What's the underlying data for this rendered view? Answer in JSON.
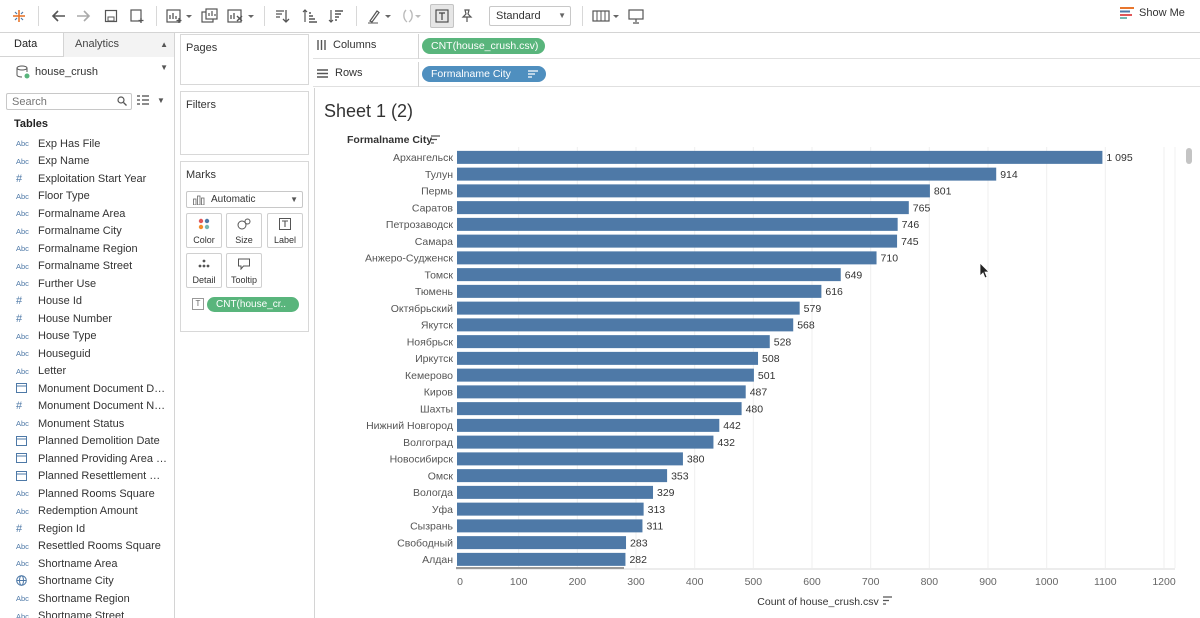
{
  "toolbar": {
    "icons": [
      "tableau-logo-icon",
      "back-icon",
      "forward-icon",
      "save-icon",
      "new-datasource-icon",
      "new-sheet-icon",
      "duplicate-icon",
      "clear-icon",
      "swap-icon",
      "sort-asc-icon",
      "sort-desc-icon",
      "highlight-icon",
      "group-icon",
      "labels-icon",
      "pin-icon",
      "fit-select",
      "show-cards-icon",
      "presentation-icon"
    ],
    "fit_value": "Standard",
    "show_me": "Show Me"
  },
  "data_pane": {
    "tab_data": "Data",
    "tab_analytics": "Analytics",
    "datasource": "house_crush",
    "search_placeholder": "Search",
    "tables_heading": "Tables",
    "fields": [
      {
        "type": "Abc",
        "name": "Exp Has File"
      },
      {
        "type": "Abc",
        "name": "Exp Name"
      },
      {
        "type": "#",
        "name": "Exploitation Start Year"
      },
      {
        "type": "Abc",
        "name": "Floor Type"
      },
      {
        "type": "Abc",
        "name": "Formalname Area"
      },
      {
        "type": "Abc",
        "name": "Formalname City"
      },
      {
        "type": "Abc",
        "name": "Formalname Region"
      },
      {
        "type": "Abc",
        "name": "Formalname Street"
      },
      {
        "type": "Abc",
        "name": "Further Use"
      },
      {
        "type": "#",
        "name": "House Id"
      },
      {
        "type": "#",
        "name": "House Number"
      },
      {
        "type": "Abc",
        "name": "House Type"
      },
      {
        "type": "Abc",
        "name": "Houseguid"
      },
      {
        "type": "Abc",
        "name": "Letter"
      },
      {
        "type": "date",
        "name": "Monument Document Date"
      },
      {
        "type": "#",
        "name": "Monument Document Nu..."
      },
      {
        "type": "Abc",
        "name": "Monument Status"
      },
      {
        "type": "date",
        "name": "Planned Demolition Date"
      },
      {
        "type": "date",
        "name": "Planned Providing Area Sq..."
      },
      {
        "type": "date",
        "name": "Planned Resettlement Date"
      },
      {
        "type": "Abc",
        "name": "Planned Rooms Square"
      },
      {
        "type": "Abc",
        "name": "Redemption Amount"
      },
      {
        "type": "#",
        "name": "Region Id"
      },
      {
        "type": "Abc",
        "name": "Resettled Rooms Square"
      },
      {
        "type": "Abc",
        "name": "Shortname Area"
      },
      {
        "type": "geo",
        "name": "Shortname City"
      },
      {
        "type": "Abc",
        "name": "Shortname Region"
      },
      {
        "type": "Abc",
        "name": "Shortname Street"
      }
    ]
  },
  "cards": {
    "pages": "Pages",
    "filters": "Filters",
    "marks": "Marks",
    "mark_type": "Automatic",
    "buttons": {
      "color": "Color",
      "size": "Size",
      "label": "Label",
      "detail": "Detail",
      "tooltip": "Tooltip"
    },
    "mark_pill": "CNT(house_cr..",
    "mark_pill_icon": "T"
  },
  "shelves": {
    "columns_label": "Columns",
    "columns_pill": "CNT(house_crush.csv)",
    "rows_label": "Rows",
    "rows_pill": "Formalname City"
  },
  "sheet": {
    "title": "Sheet 1 (2)"
  },
  "colors": {
    "bar": "#4e79a7",
    "measure_pill": "#59b57c",
    "dimension_pill": "#4f8fbf"
  },
  "chart_data": {
    "type": "bar",
    "orientation": "horizontal",
    "ylabel": "Formalname City",
    "xlabel": "Count of house_crush.csv",
    "xlim": [
      0,
      1200
    ],
    "xticks": [
      "0",
      "100",
      "200",
      "300",
      "400",
      "500",
      "600",
      "700",
      "800",
      "900",
      "1000",
      "1100",
      "1200"
    ],
    "categories": [
      "Архангельск",
      "Тулун",
      "Пермь",
      "Саратов",
      "Петрозаводск",
      "Самара",
      "Анжеро-Судженск",
      "Томск",
      "Тюмень",
      "Октябрьский",
      "Якутск",
      "Ноябрьск",
      "Иркутск",
      "Кемерово",
      "Киров",
      "Шахты",
      "Нижний Новгород",
      "Волгоград",
      "Новосибирск",
      "Омск",
      "Вологда",
      "Уфа",
      "Сызрань",
      "Свободный",
      "Алдан"
    ],
    "values": [
      1095,
      914,
      801,
      765,
      746,
      745,
      710,
      649,
      616,
      579,
      568,
      528,
      508,
      501,
      487,
      480,
      442,
      432,
      380,
      353,
      329,
      313,
      311,
      283,
      282
    ],
    "labels": [
      "1 095",
      "914",
      "801",
      "765",
      "746",
      "745",
      "710",
      "649",
      "616",
      "579",
      "568",
      "528",
      "508",
      "501",
      "487",
      "480",
      "442",
      "432",
      "380",
      "353",
      "329",
      "313",
      "311",
      "283",
      "282"
    ],
    "grid": true
  }
}
